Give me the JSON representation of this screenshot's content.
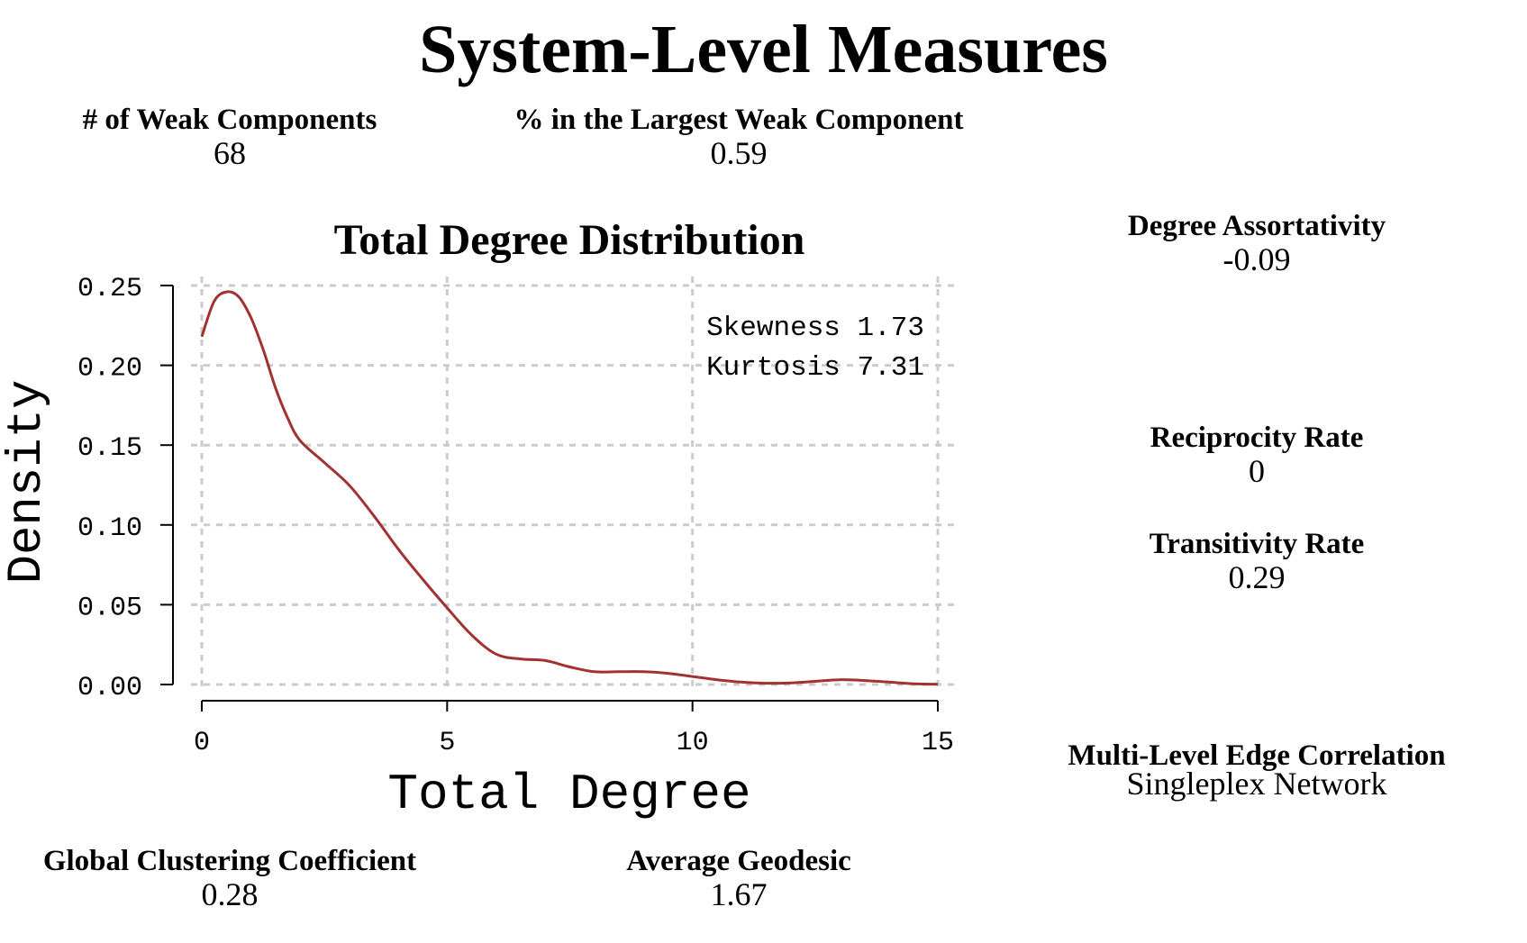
{
  "title": "System-Level Measures",
  "measures": {
    "weak_components": {
      "label": "# of Weak Components",
      "value": "68"
    },
    "largest_weak": {
      "label": "% in the Largest Weak Component",
      "value": "0.59"
    },
    "assortativity": {
      "label": "Degree Assortativity",
      "value": "-0.09"
    },
    "reciprocity": {
      "label": "Reciprocity Rate",
      "value": "0"
    },
    "transitivity": {
      "label": "Transitivity Rate",
      "value": "0.29"
    },
    "multilevel": {
      "label": "Multi-Level Edge Correlation",
      "value": "Singleplex Network"
    },
    "global_clustering": {
      "label": "Global Clustering Coefficient",
      "value": "0.28"
    },
    "avg_geodesic": {
      "label": "Average Geodesic",
      "value": "1.67"
    }
  },
  "chart_data": {
    "type": "line",
    "title": "Total Degree Distribution",
    "xlabel": "Total Degree",
    "ylabel": "Density",
    "xlim": [
      0,
      15
    ],
    "ylim": [
      0,
      0.25
    ],
    "xticks": [
      "0",
      "5",
      "10",
      "15"
    ],
    "yticks": [
      "0.00",
      "0.05",
      "0.10",
      "0.15",
      "0.20",
      "0.25"
    ],
    "grid": true,
    "line_color": "#a23232",
    "annotations": [
      "Skewness 1.73",
      "Kurtosis 7.31"
    ],
    "series": [
      {
        "x": [
          0,
          0.25,
          0.5,
          0.75,
          1.0,
          1.25,
          1.5,
          1.75,
          2.0,
          2.5,
          3.0,
          3.5,
          4.0,
          4.5,
          5.0,
          5.5,
          6.0,
          6.5,
          7.0,
          7.5,
          8.0,
          8.5,
          9.0,
          9.5,
          10.0,
          10.5,
          11.0,
          11.5,
          12.0,
          12.5,
          13.0,
          13.5,
          14.0,
          14.5,
          15.0
        ],
        "y": [
          0.218,
          0.24,
          0.246,
          0.243,
          0.23,
          0.21,
          0.186,
          0.167,
          0.153,
          0.139,
          0.125,
          0.106,
          0.085,
          0.066,
          0.048,
          0.031,
          0.019,
          0.016,
          0.015,
          0.011,
          0.008,
          0.008,
          0.008,
          0.007,
          0.005,
          0.003,
          0.0015,
          0.0008,
          0.001,
          0.002,
          0.003,
          0.0025,
          0.0015,
          0.0005,
          0.0002
        ]
      }
    ]
  }
}
